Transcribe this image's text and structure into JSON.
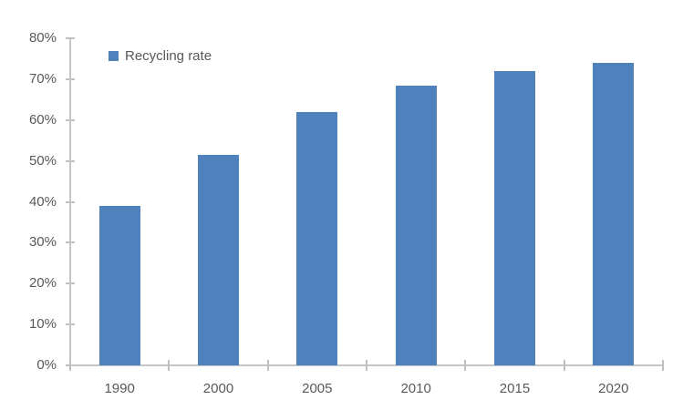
{
  "chart": {
    "title": "",
    "legend": {
      "label": "Recycling rate",
      "position": "inside-top-left"
    },
    "colors": {
      "bar": "#4f81bd",
      "axis_line": "#c6c6c6",
      "tick": "#bfbfbf",
      "label_text": "#595959",
      "background": "#ffffff"
    }
  },
  "chart_data": {
    "type": "bar",
    "title": "",
    "xlabel": "",
    "ylabel": "",
    "categories": [
      "1990",
      "2000",
      "2005",
      "2010",
      "2015",
      "2020"
    ],
    "series": [
      {
        "name": "Recycling rate",
        "color": "#4f81bd",
        "values": [
          39,
          51.5,
          62,
          68.5,
          72,
          74
        ]
      }
    ],
    "unit": "%",
    "ylim": [
      0,
      80
    ],
    "ytick_step": 10,
    "ytick_labels": [
      "0%",
      "10%",
      "20%",
      "30%",
      "40%",
      "50%",
      "60%",
      "70%",
      "80%"
    ],
    "grid": false,
    "legend_position": "top-left-inside"
  }
}
